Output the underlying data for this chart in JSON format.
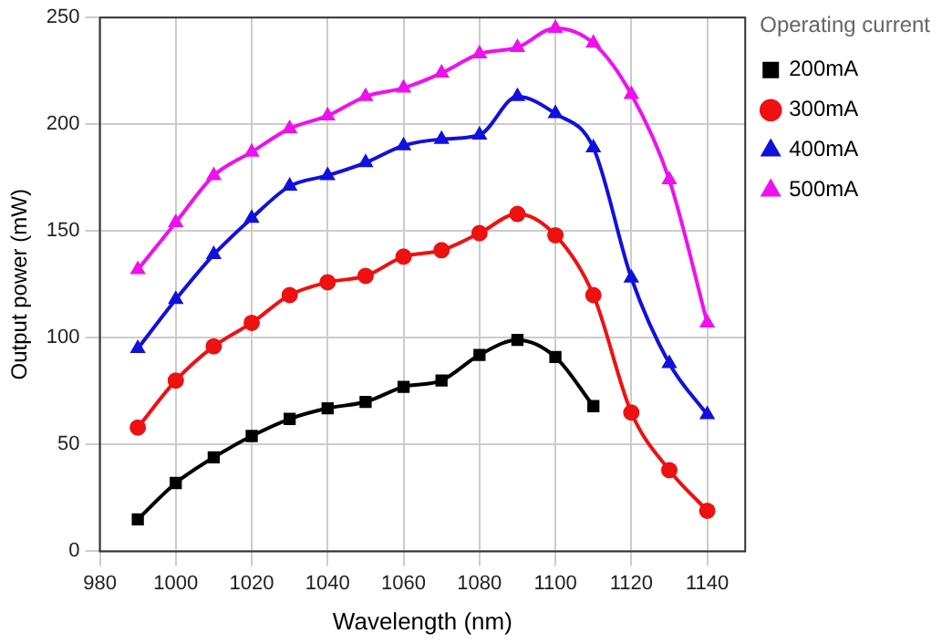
{
  "chart_data": {
    "type": "line",
    "xlabel": "Wavelength (nm)",
    "ylabel": "Output power (mW)",
    "legend_title": "Operating current",
    "x": [
      990,
      1000,
      1010,
      1020,
      1030,
      1040,
      1050,
      1060,
      1070,
      1080,
      1090,
      1100,
      1110,
      1120,
      1130,
      1140
    ],
    "series": [
      {
        "name": "200mA",
        "color": "#000000",
        "marker": "square",
        "values": [
          15,
          32,
          44,
          54,
          62,
          67,
          70,
          77,
          80,
          92,
          99,
          91,
          68,
          null,
          null,
          null
        ]
      },
      {
        "name": "300mA",
        "color": "#ee1111",
        "marker": "circle",
        "values": [
          58,
          80,
          96,
          107,
          120,
          126,
          129,
          138,
          141,
          149,
          158,
          148,
          120,
          65,
          38,
          19
        ]
      },
      {
        "name": "400mA",
        "color": "#1111dd",
        "marker": "triangle",
        "values": [
          95,
          118,
          139,
          156,
          171,
          176,
          182,
          190,
          193,
          195,
          213,
          205,
          189,
          128,
          88,
          64
        ]
      },
      {
        "name": "500mA",
        "color": "#ee11ee",
        "marker": "triangle",
        "values": [
          132,
          154,
          176,
          187,
          198,
          204,
          213,
          217,
          224,
          233,
          236,
          245,
          238,
          214,
          174,
          107
        ]
      }
    ],
    "xlim": [
      980,
      1150
    ],
    "xticks": [
      980,
      1000,
      1020,
      1040,
      1060,
      1080,
      1100,
      1120,
      1140
    ],
    "ylim": [
      0,
      250
    ],
    "yticks": [
      0,
      50,
      100,
      150,
      200,
      250
    ],
    "grid": true,
    "legend": "top right"
  }
}
